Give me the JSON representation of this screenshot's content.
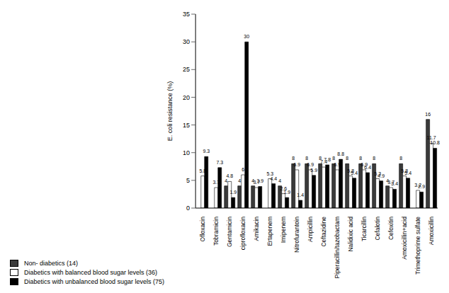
{
  "chart_data": {
    "type": "bar",
    "y_label": "E. coli resistance (%)",
    "categories": [
      "Ofloxacin",
      "Tobramicin",
      "Gentamicin",
      "ciprofloxacin",
      "Amikacin",
      "Ertapenem",
      "Imipenem",
      "Nitrofurantoin",
      "Ampicillin",
      "Ceftazidine",
      "Piperacillin/tazobactam",
      "Nalidixic acid",
      "Ticarcillin",
      "Cefalotin",
      "Cefoxitin",
      "Amoxicillin+acid",
      "Trimethoprime sulfate",
      "Amoxicillin"
    ],
    "series": [
      {
        "name": "Non- diabetics (14)",
        "color": "#3a3a3a",
        "values": [
          0,
          0,
          4,
          4,
          4,
          0,
          4,
          8,
          8,
          8,
          8,
          8,
          8,
          8,
          4,
          8,
          0,
          16
        ]
      },
      {
        "name": "Diabetics with balanced blood sugar levels (36)",
        "color": "#ffffff",
        "values": [
          5.8,
          3.7,
          4.8,
          6,
          3.7,
          5.3,
          2.6,
          6.9,
          6.9,
          7.4,
          6.9,
          5.8,
          6.9,
          5.3,
          3.7,
          5.8,
          3.2,
          11.7
        ]
      },
      {
        "name": "Diabetics with unbalanced blood sugar levels (75)",
        "color": "#000000",
        "values": [
          9.3,
          7.3,
          1.9,
          30,
          3.9,
          4.4,
          1.9,
          1.4,
          5.9,
          7.8,
          8.8,
          5.4,
          6.4,
          4.9,
          3.4,
          5.4,
          2.9,
          10.8
        ]
      }
    ],
    "ylim": [
      0,
      35
    ],
    "yticks": [
      0,
      5,
      10,
      15,
      20,
      25,
      30,
      35
    ],
    "grid": false,
    "legend": "bottom-left",
    "data_labels": true
  }
}
